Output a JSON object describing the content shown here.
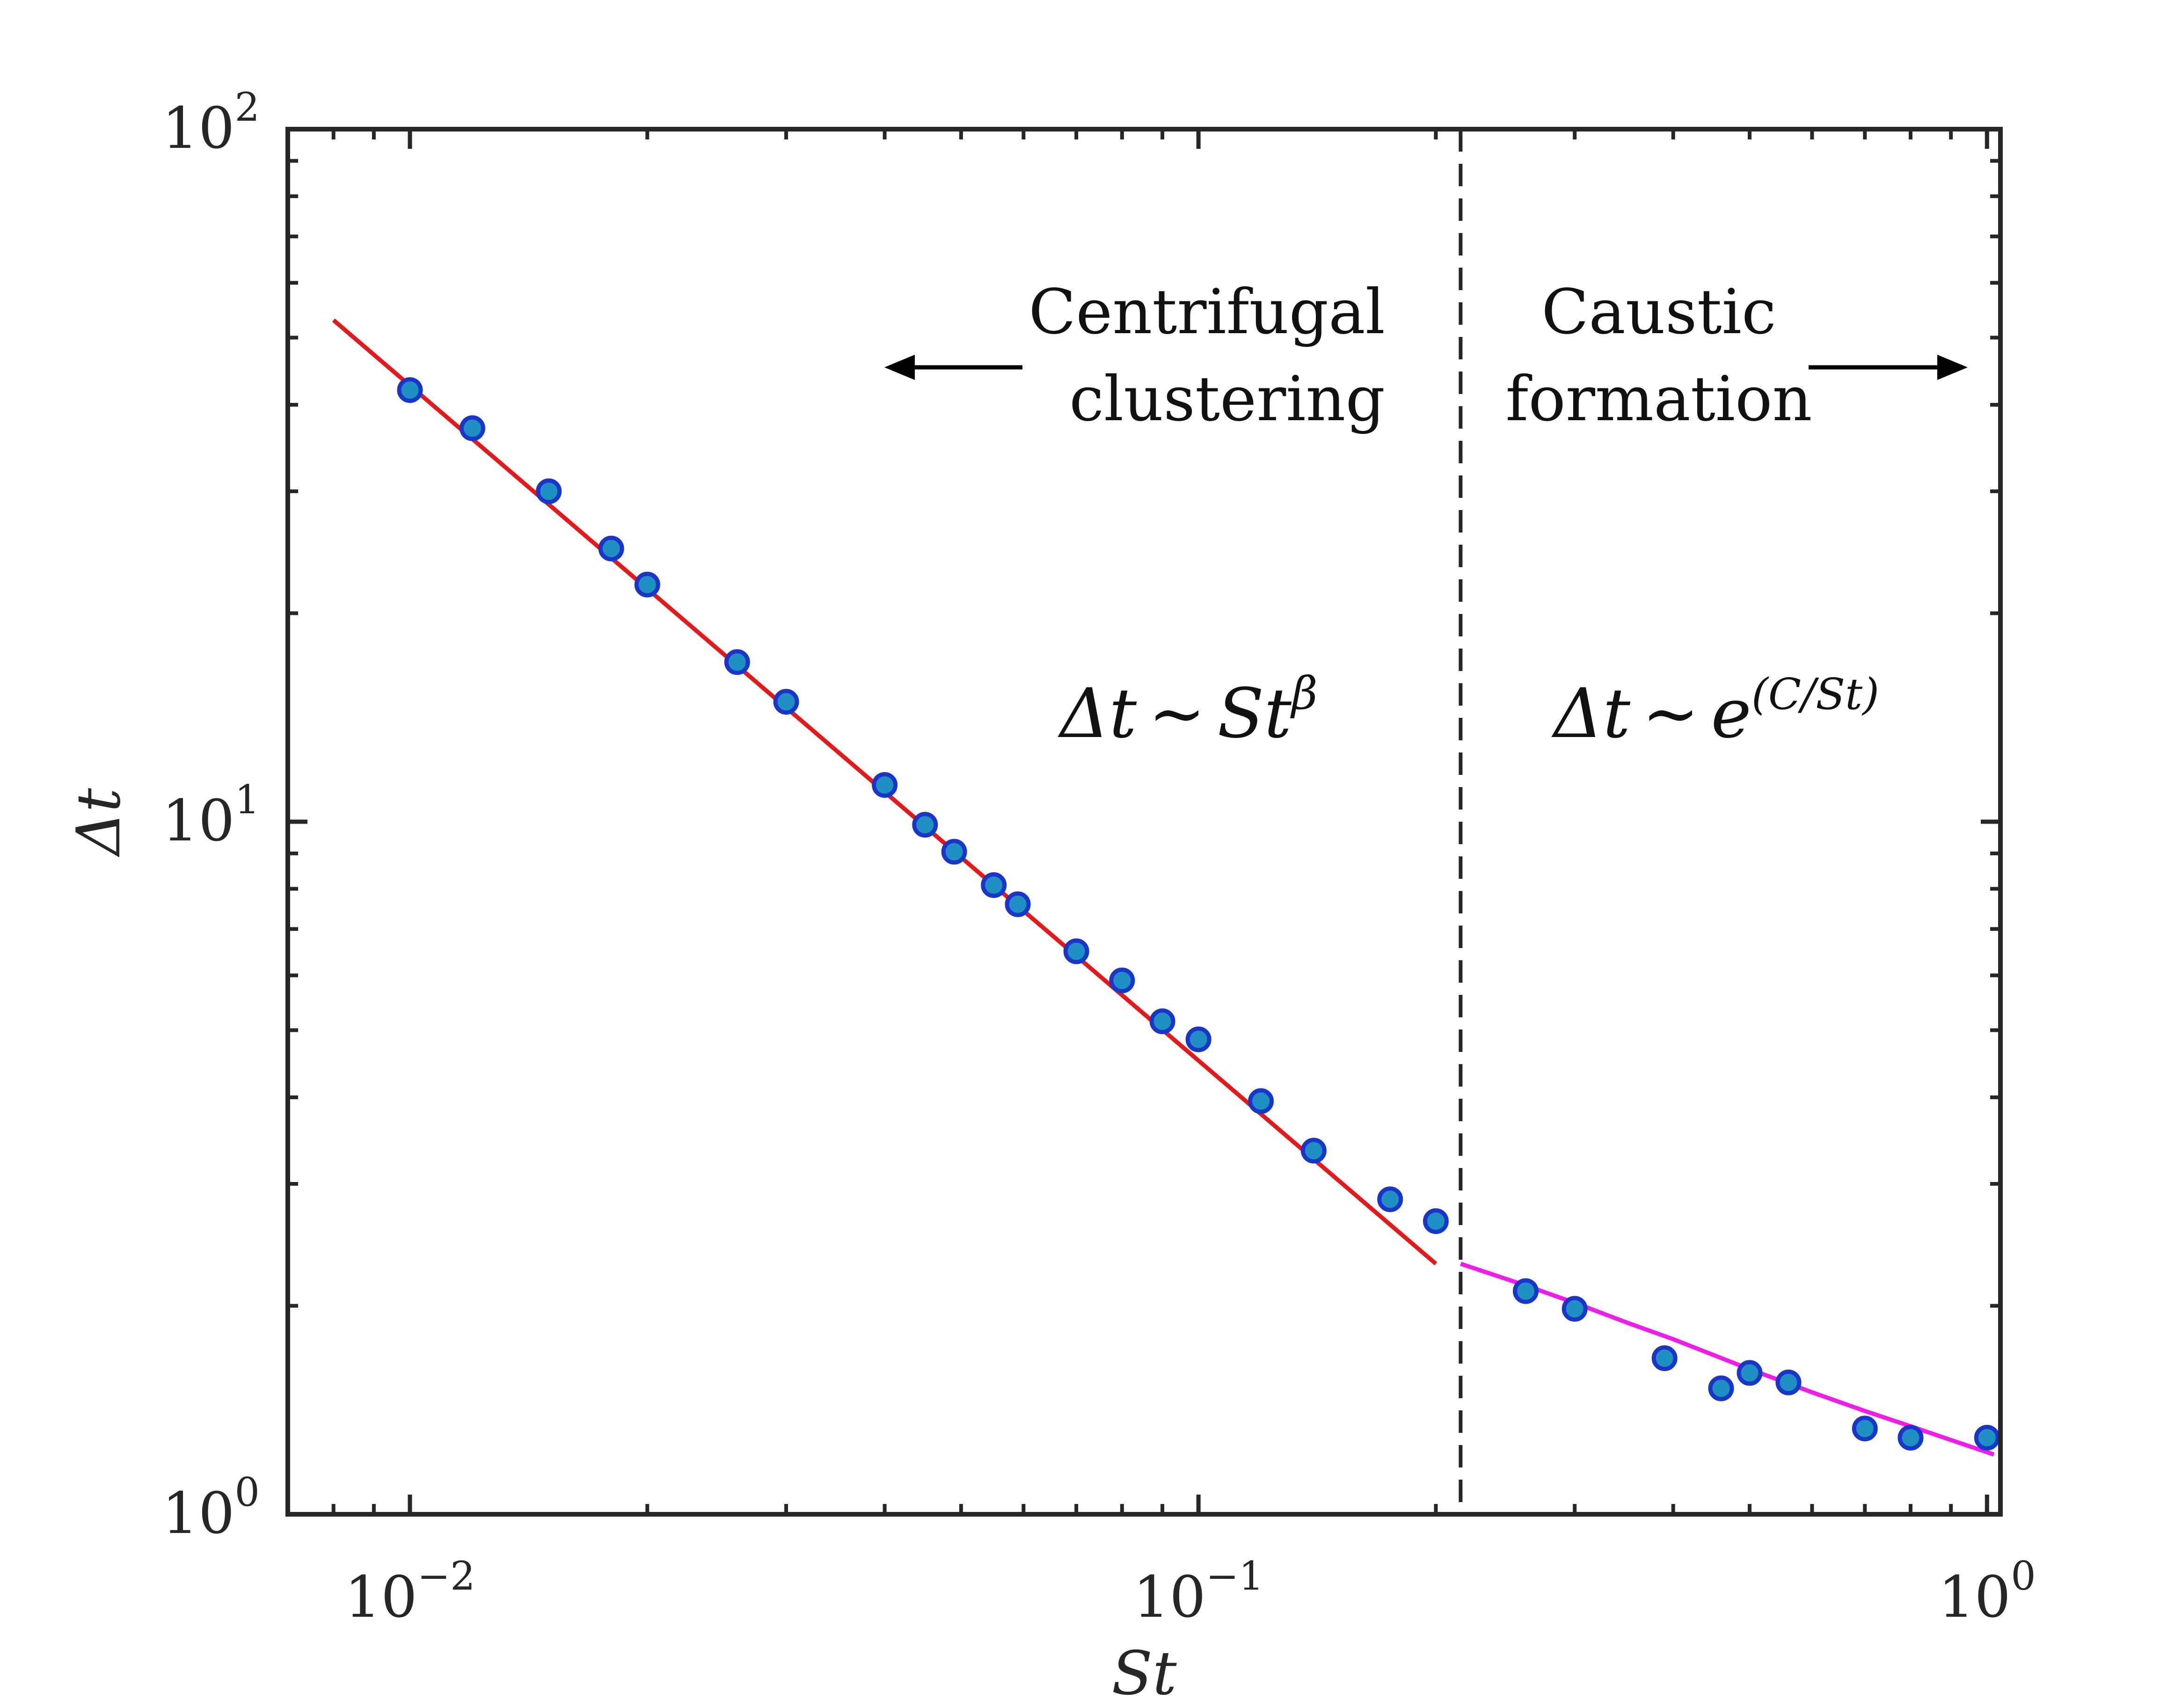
{
  "chart_data": {
    "type": "scatter",
    "title": "",
    "xlabel": "St",
    "ylabel": "Δt",
    "xscale": "log",
    "yscale": "log",
    "xlim": [
      0.007,
      1.04
    ],
    "ylim": [
      1,
      100
    ],
    "x_ticks": [
      {
        "value": 0.01,
        "base": "10",
        "exp": "−2"
      },
      {
        "value": 0.1,
        "base": "10",
        "exp": "−1"
      },
      {
        "value": 1,
        "base": "10",
        "exp": "0"
      }
    ],
    "y_ticks": [
      {
        "value": 1,
        "base": "10",
        "exp": "0"
      },
      {
        "value": 10,
        "base": "10",
        "exp": "1"
      },
      {
        "value": 100,
        "base": "10",
        "exp": "2"
      }
    ],
    "colors": {
      "marker_fill": "#1f8fc4",
      "marker_edge": "#1a36c8",
      "power_fit": "#e31a1c",
      "exp_fit": "#ee1ee8",
      "axes": "#262626",
      "divider": "#262626"
    },
    "series": [
      {
        "name": "data",
        "kind": "markers",
        "x": [
          0.01,
          0.012,
          0.015,
          0.018,
          0.02,
          0.026,
          0.03,
          0.04,
          0.045,
          0.049,
          0.055,
          0.059,
          0.07,
          0.08,
          0.09,
          0.1,
          0.12,
          0.14,
          0.175,
          0.2,
          0.26,
          0.3,
          0.39,
          0.46,
          0.5,
          0.56,
          0.7,
          0.8,
          1.0
        ],
        "y": [
          42.0,
          37.0,
          30.0,
          24.8,
          22.0,
          17.0,
          14.9,
          11.3,
          9.9,
          9.05,
          8.1,
          7.6,
          6.5,
          5.9,
          5.15,
          4.85,
          3.95,
          3.35,
          2.85,
          2.65,
          2.1,
          1.98,
          1.68,
          1.52,
          1.6,
          1.55,
          1.33,
          1.29,
          1.29
        ]
      },
      {
        "name": "power-law fit",
        "kind": "line",
        "x": [
          0.008,
          0.2
        ],
        "y": [
          53.0,
          2.3
        ]
      },
      {
        "name": "exponential fit",
        "kind": "line",
        "x": [
          0.215,
          0.26,
          0.3,
          0.35,
          0.4,
          0.5,
          0.6,
          0.7,
          0.8,
          0.9,
          1.02
        ],
        "y": [
          2.3,
          2.14,
          2.02,
          1.89,
          1.79,
          1.62,
          1.5,
          1.41,
          1.34,
          1.28,
          1.22
        ]
      }
    ],
    "divider": {
      "x": 0.215,
      "style": "dashed"
    },
    "annotations": {
      "left_region": {
        "line1": "Centrifugal",
        "line2": "clustering"
      },
      "right_region": {
        "line1": "Caustic",
        "line2": "formation"
      },
      "left_formula": {
        "lhs": "Δt",
        "rel": "∼",
        "base": "St",
        "sup": "β"
      },
      "right_formula": {
        "lhs": "Δt",
        "rel": "∼",
        "base": "e",
        "sup": "(C/St)"
      }
    }
  }
}
